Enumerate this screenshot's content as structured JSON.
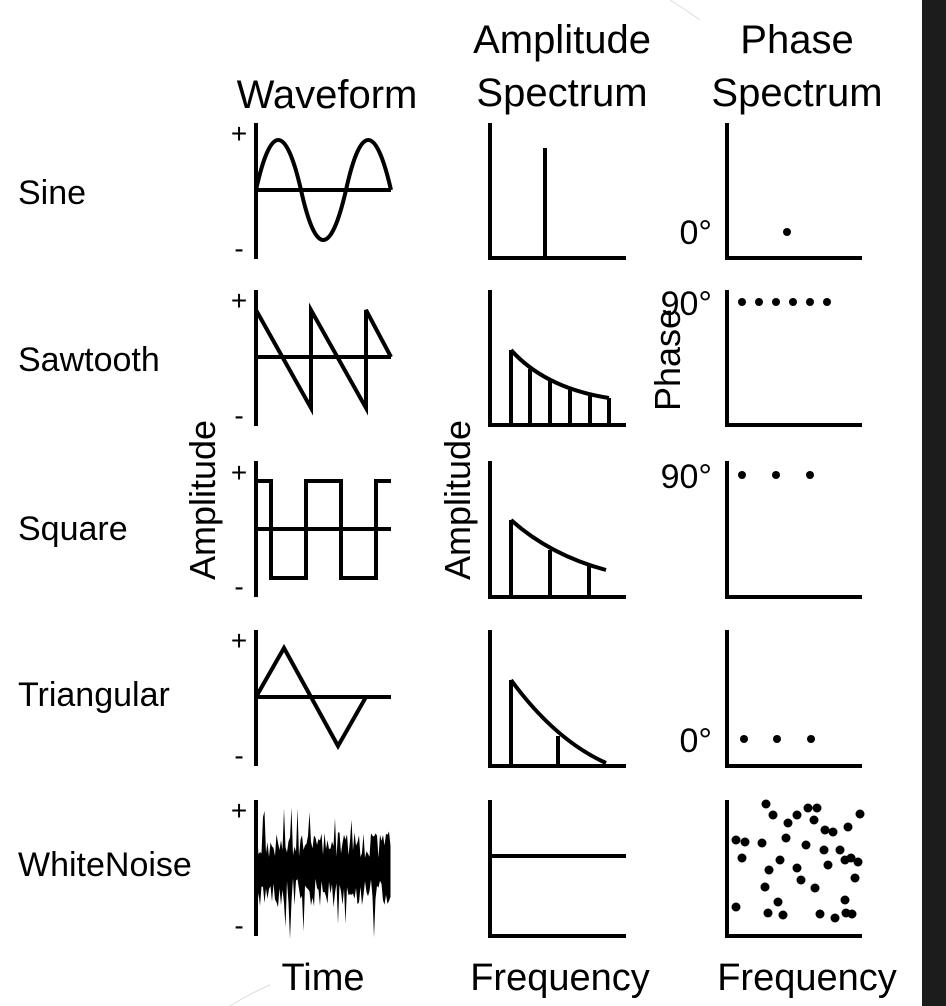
{
  "headers": {
    "waveform": "Waveform",
    "amplitude_line1": "Amplitude",
    "amplitude_line2": "Spectrum",
    "phase_line1": "Phase",
    "phase_line2": "Spectrum"
  },
  "rows": [
    {
      "label": "Sine"
    },
    {
      "label": "Sawtooth"
    },
    {
      "label": "Square"
    },
    {
      "label": "Triangular"
    },
    {
      "label": "WhiteNoise"
    }
  ],
  "waveform_axis": {
    "ylabel": "Amplitude",
    "xlabel": "Time",
    "plus": "+",
    "minus": "-"
  },
  "amplitude_axis": {
    "ylabel": "Amplitude",
    "xlabel": "Frequency"
  },
  "phase_axis": {
    "ylabel": "Phase",
    "xlabel": "Frequency"
  },
  "phase_labels": {
    "sine": "0°",
    "sawtooth": "90°",
    "square": "90°",
    "triangular": "0°"
  },
  "colors": {
    "ink": "#000000",
    "background": "#ffffff",
    "side_strip": "#1c1c1c"
  }
}
